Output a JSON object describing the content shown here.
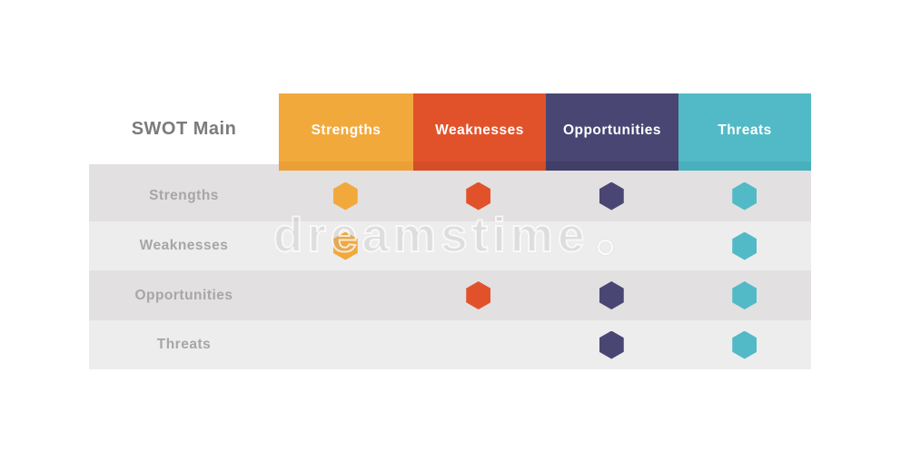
{
  "page": {
    "background": "#ffffff"
  },
  "table": {
    "corner_title": "SWOT Main",
    "title_color": "#7C7A7B",
    "label_color": "#A7A5A6",
    "row_colors": {
      "odd": "#E2E0E1",
      "even": "#EEEDEE"
    },
    "marker_shape": "hexagon",
    "columns": [
      {
        "label": "Strengths",
        "color": "#F2A93C",
        "edge_color": "#EBA037"
      },
      {
        "label": "Weaknesses",
        "color": "#E2522A",
        "edge_color": "#D54D27"
      },
      {
        "label": "Opportunities",
        "color": "#494673",
        "edge_color": "#413E68"
      },
      {
        "label": "Threats",
        "color": "#51BAC6",
        "edge_color": "#48AFBD"
      }
    ],
    "rows": [
      {
        "label": "Strengths",
        "cells": [
          true,
          true,
          true,
          true
        ]
      },
      {
        "label": "Weaknesses",
        "cells": [
          true,
          false,
          false,
          true
        ]
      },
      {
        "label": "Opportunities",
        "cells": [
          false,
          true,
          true,
          true
        ]
      },
      {
        "label": "Threats",
        "cells": [
          false,
          false,
          true,
          true
        ]
      }
    ]
  },
  "watermark": {
    "text": "dreamstime",
    "symbol": "circle-mark"
  }
}
